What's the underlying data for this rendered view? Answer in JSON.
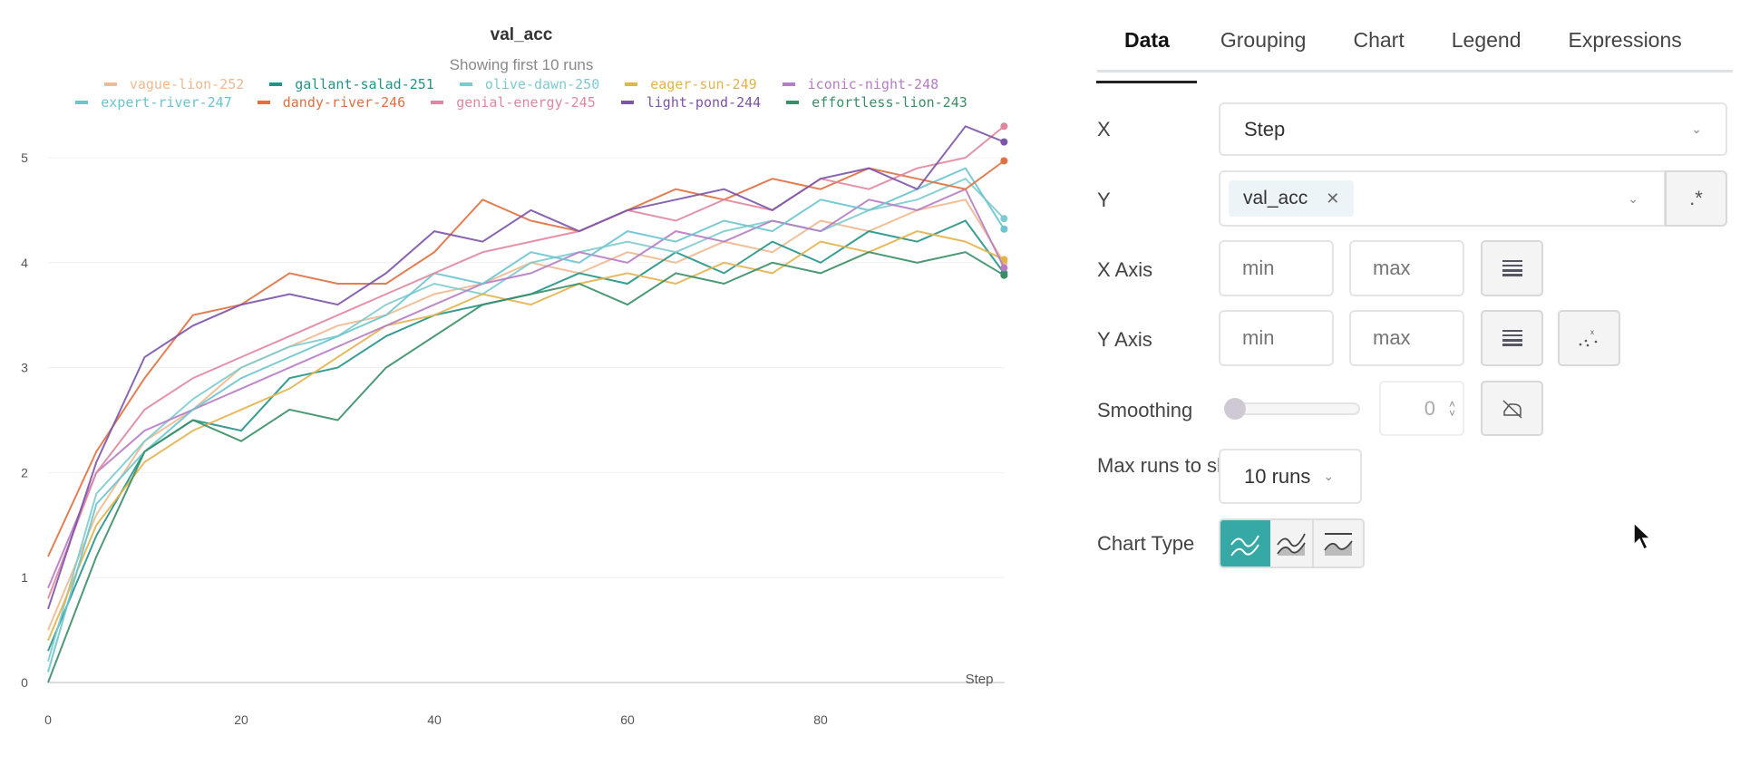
{
  "chart_data": {
    "type": "line",
    "title": "val_acc",
    "subtitle": "Showing first 10 runs",
    "xlabel": "Step",
    "xlim": [
      0,
      99
    ],
    "ylim": [
      0,
      5.3
    ],
    "xticks": [
      0,
      20,
      40,
      60,
      80
    ],
    "yticks": [
      0,
      1,
      2,
      3,
      4,
      5
    ],
    "grid": true,
    "legend_placement": "top",
    "x": [
      0,
      5,
      10,
      15,
      20,
      25,
      30,
      35,
      40,
      45,
      50,
      55,
      60,
      65,
      70,
      75,
      80,
      85,
      90,
      95,
      99
    ],
    "series": [
      {
        "name": "vague-lion-252",
        "color": "#f0b98f",
        "values": [
          0.5,
          1.6,
          2.3,
          2.6,
          3.0,
          3.2,
          3.4,
          3.5,
          3.7,
          3.8,
          4.0,
          3.9,
          4.1,
          4.0,
          4.2,
          4.1,
          4.4,
          4.3,
          4.5,
          4.6,
          4.0
        ]
      },
      {
        "name": "gallant-salad-251",
        "color": "#229487",
        "values": [
          0.3,
          1.4,
          2.2,
          2.5,
          2.4,
          2.9,
          3.0,
          3.3,
          3.5,
          3.6,
          3.7,
          3.9,
          3.8,
          4.1,
          3.9,
          4.2,
          4.0,
          4.3,
          4.2,
          4.4,
          3.9
        ]
      },
      {
        "name": "olive-dawn-250",
        "color": "#7ecbcf",
        "values": [
          0.2,
          1.8,
          2.3,
          2.7,
          3.0,
          3.2,
          3.3,
          3.6,
          3.8,
          3.7,
          4.0,
          4.1,
          4.2,
          4.1,
          4.3,
          4.4,
          4.3,
          4.5,
          4.6,
          4.8,
          4.42
        ]
      },
      {
        "name": "eager-sun-249",
        "color": "#e3b34c",
        "values": [
          0.4,
          1.5,
          2.1,
          2.4,
          2.6,
          2.8,
          3.1,
          3.4,
          3.5,
          3.7,
          3.6,
          3.8,
          3.9,
          3.8,
          4.0,
          3.9,
          4.2,
          4.1,
          4.3,
          4.2,
          4.03
        ]
      },
      {
        "name": "iconic-night-248",
        "color": "#b67cc4",
        "values": [
          0.9,
          2.0,
          2.4,
          2.6,
          2.8,
          3.0,
          3.2,
          3.4,
          3.6,
          3.8,
          3.9,
          4.1,
          4.0,
          4.3,
          4.2,
          4.4,
          4.3,
          4.6,
          4.5,
          4.7,
          3.95
        ]
      },
      {
        "name": "expert-river-247",
        "color": "#6cc4cf",
        "values": [
          0.1,
          1.7,
          2.2,
          2.6,
          2.9,
          3.1,
          3.3,
          3.5,
          3.9,
          3.8,
          4.1,
          4.0,
          4.3,
          4.2,
          4.4,
          4.3,
          4.6,
          4.5,
          4.7,
          4.9,
          4.32
        ]
      },
      {
        "name": "dandy-river-246",
        "color": "#e07040",
        "values": [
          1.2,
          2.2,
          2.9,
          3.5,
          3.6,
          3.9,
          3.8,
          3.8,
          4.1,
          4.6,
          4.4,
          4.3,
          4.5,
          4.7,
          4.6,
          4.8,
          4.7,
          4.9,
          4.8,
          4.7,
          4.97
        ]
      },
      {
        "name": "genial-energy-245",
        "color": "#e0869f",
        "values": [
          0.8,
          2.0,
          2.6,
          2.9,
          3.1,
          3.3,
          3.5,
          3.7,
          3.9,
          4.1,
          4.2,
          4.3,
          4.5,
          4.4,
          4.6,
          4.5,
          4.8,
          4.7,
          4.9,
          5.0,
          5.3
        ]
      },
      {
        "name": "light-pond-244",
        "color": "#7c54a8",
        "values": [
          0.7,
          2.1,
          3.1,
          3.4,
          3.6,
          3.7,
          3.6,
          3.9,
          4.3,
          4.2,
          4.5,
          4.3,
          4.5,
          4.6,
          4.7,
          4.5,
          4.8,
          4.9,
          4.7,
          5.3,
          5.15
        ]
      },
      {
        "name": "effortless-lion-243",
        "color": "#3a8e66",
        "values": [
          0.0,
          1.2,
          2.2,
          2.5,
          2.3,
          2.6,
          2.5,
          3.0,
          3.3,
          3.6,
          3.7,
          3.8,
          3.6,
          3.9,
          3.8,
          4.0,
          3.9,
          4.1,
          4.0,
          4.1,
          3.88
        ]
      }
    ]
  },
  "panel": {
    "tabs": [
      "Data",
      "Grouping",
      "Chart",
      "Legend",
      "Expressions"
    ],
    "x_label": "X",
    "x_value": "Step",
    "y_label": "Y",
    "y_tag": "val_acc",
    "regex_icon": ".*",
    "xaxis_label": "X Axis",
    "yaxis_label": "Y Axis",
    "min_placeholder": "min",
    "max_placeholder": "max",
    "smoothing_label": "Smoothing",
    "smoothing_value": "0",
    "maxruns_label": "Max runs to show",
    "maxruns_value": "10 runs",
    "charttype_label": "Chart Type",
    "accent": "#36a9a7"
  }
}
